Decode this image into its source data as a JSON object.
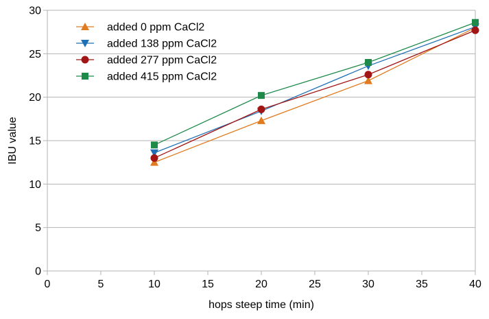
{
  "chart_data": {
    "type": "line",
    "title": "",
    "xlabel": "hops steep time (min)",
    "ylabel": "IBU value",
    "xlim": [
      0,
      40
    ],
    "ylim": [
      0,
      30
    ],
    "xticks": [
      0,
      5,
      10,
      15,
      20,
      25,
      30,
      35,
      40
    ],
    "yticks": [
      0,
      5,
      10,
      15,
      20,
      25,
      30
    ],
    "grid": "horizontal",
    "legend_position": "top-left",
    "x": [
      10,
      20,
      30,
      40
    ],
    "series": [
      {
        "name": "added 0 ppm CaCl2",
        "color": "#e07b20",
        "marker": "triangle-up",
        "values": [
          12.5,
          17.3,
          21.9,
          28.0
        ]
      },
      {
        "name": "added 138 ppm CaCl2",
        "color": "#1f6fb4",
        "marker": "triangle-down",
        "values": [
          13.6,
          18.4,
          23.6,
          28.1
        ]
      },
      {
        "name": "added 277 ppm CaCl2",
        "color": "#a11515",
        "marker": "circle",
        "values": [
          13.0,
          18.6,
          22.6,
          27.7
        ]
      },
      {
        "name": "added 415 ppm CaCl2",
        "color": "#1e8a4a",
        "marker": "square",
        "values": [
          14.5,
          20.2,
          24.0,
          28.6
        ]
      }
    ]
  }
}
